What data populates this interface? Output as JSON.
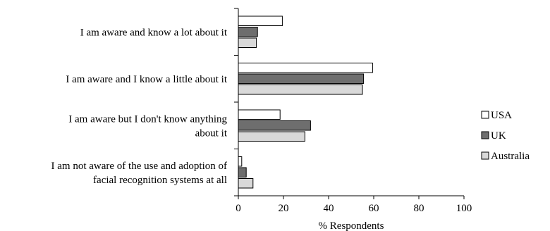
{
  "chart_data": {
    "type": "bar",
    "orientation": "horizontal",
    "categories": [
      [
        "I am aware and know a lot about it"
      ],
      [
        "I am aware and I know a little about it"
      ],
      [
        "I am aware but I don't know anything",
        "about it"
      ],
      [
        "I am not aware of the use and adoption of",
        "facial recognition systems at all"
      ]
    ],
    "series": [
      {
        "name": "USA",
        "color": "#ffffff",
        "values": [
          19.5,
          59.5,
          18.5,
          1.5
        ]
      },
      {
        "name": "UK",
        "color": "#6e6e6e",
        "values": [
          8.5,
          55.5,
          32,
          3.5
        ]
      },
      {
        "name": "Australia",
        "color": "#d9d9d9",
        "values": [
          8,
          55,
          29.5,
          6.5
        ]
      }
    ],
    "xlabel": "% Respondents",
    "xlim": [
      0,
      100
    ],
    "xticks": [
      0,
      20,
      40,
      60,
      80,
      100
    ],
    "grid": false,
    "legend": "right"
  }
}
